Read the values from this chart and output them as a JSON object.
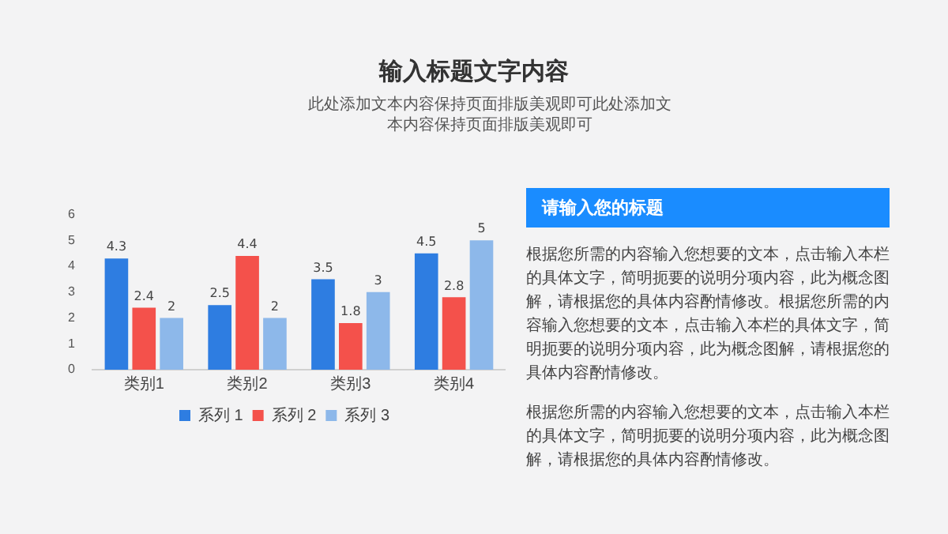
{
  "chart_data": {
    "type": "bar",
    "title": "输入标题文字内容",
    "subtitle": "此处添加文本内容保持页面排版美观即可此处添加文本内容保持页面排版美观即可",
    "annotations": [
      "请输入您的标题",
      "根据您所需的内容输入您想要的文本，点击输入本栏的具体文字，简明扼要的说明分项内容，此为概念图解，请根据您的具体内容酌情修改。根据您所需的内容输入您想要的文本，点击输入本栏的具体文字，简明扼要的说明分项内容，此为概念图解，请根据您的具体内容酌情修改。",
      "根据您所需的内容输入您想要的文本，点击输入本栏的具体文字，简明扼要的说明分项内容，此为概念图解，请根据您的具体内容酌情修改。"
    ],
    "categories": [
      "类别1",
      "类别2",
      "类别3",
      "类别4"
    ],
    "series": [
      {
        "name": "系列 1",
        "color": "#2e7de1",
        "values": [
          4.3,
          2.5,
          3.5,
          4.5
        ]
      },
      {
        "name": "系列 2",
        "color": "#f4514b",
        "values": [
          2.4,
          4.4,
          1.8,
          2.8
        ]
      },
      {
        "name": "系列 3",
        "color": "#8db8ea",
        "values": [
          2,
          2,
          3,
          5
        ]
      }
    ],
    "ylim": [
      0,
      6
    ],
    "yticks": [
      0,
      1,
      2,
      3,
      4,
      5,
      6
    ],
    "grid": false,
    "legend": "bottom",
    "data_labels": true
  }
}
